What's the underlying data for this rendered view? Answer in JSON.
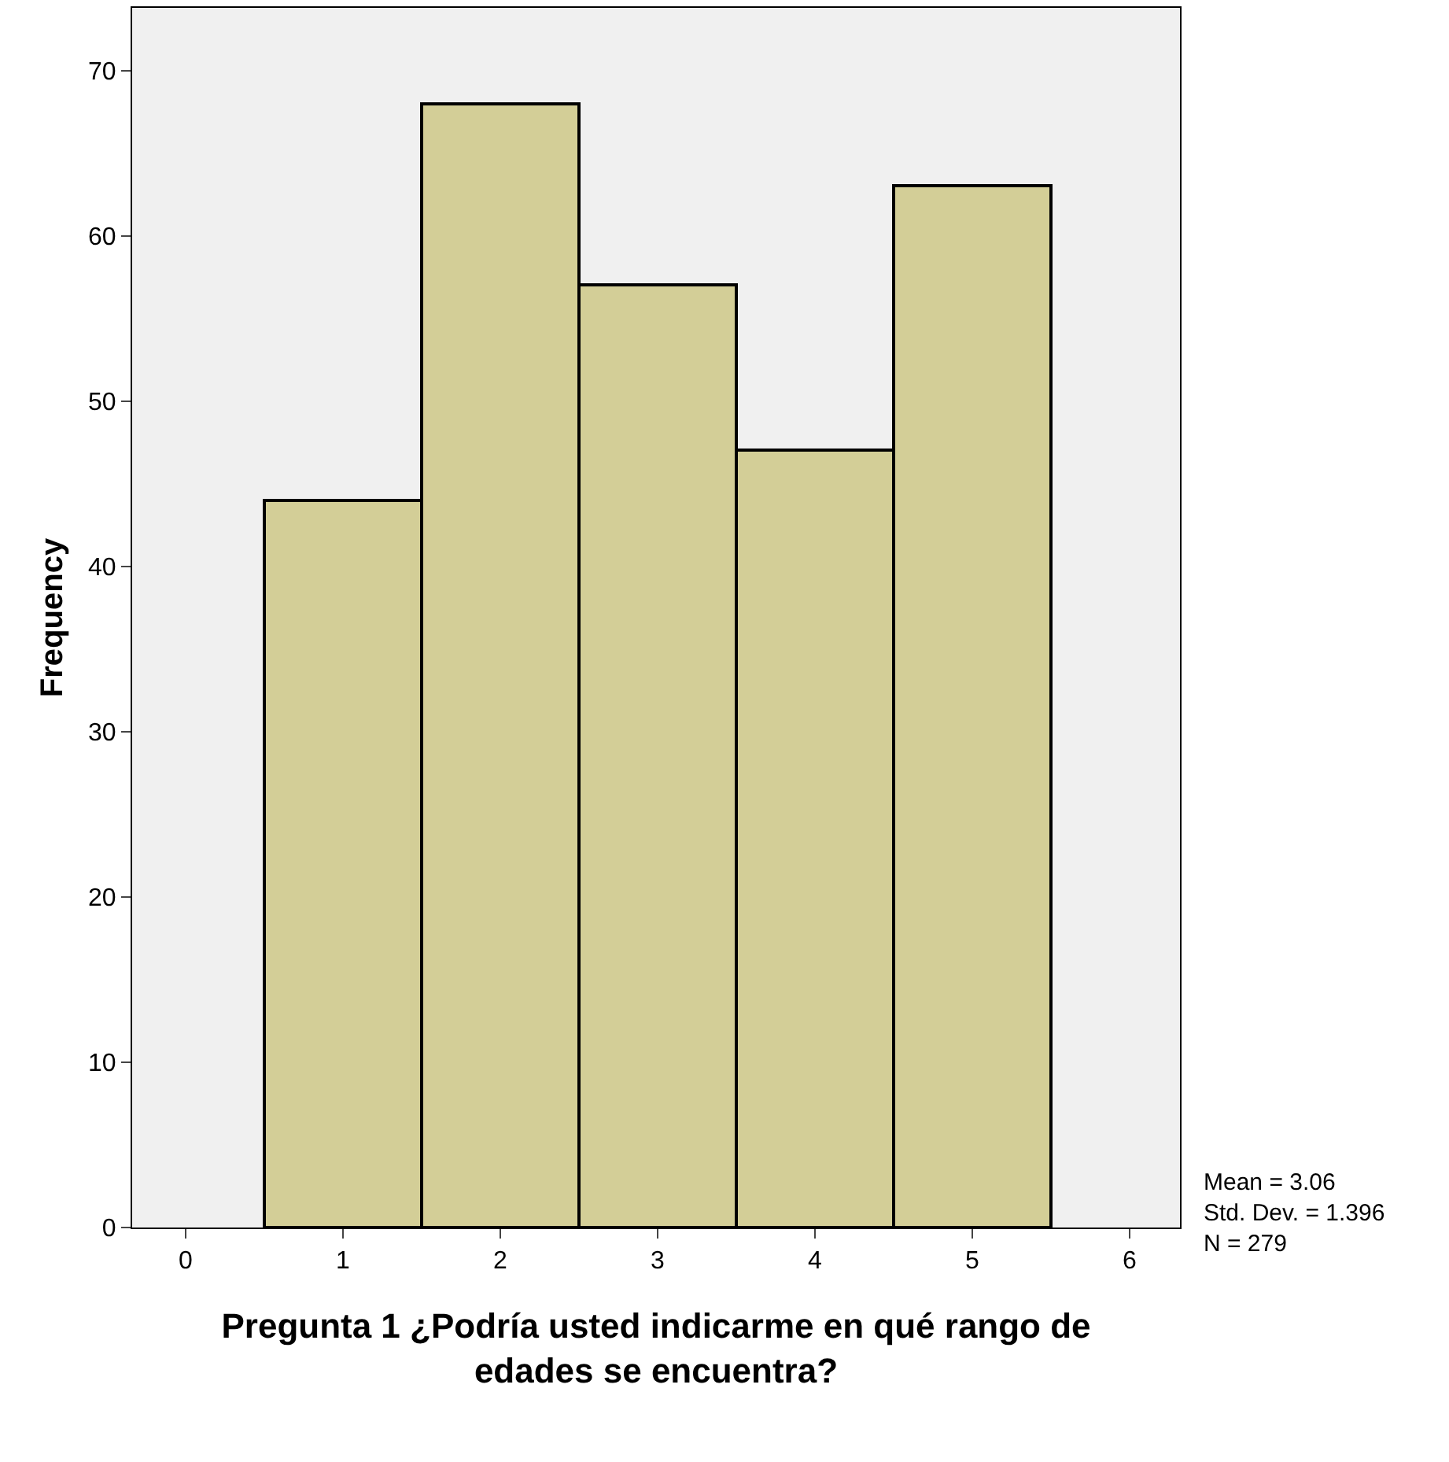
{
  "chart_data": {
    "type": "histogram",
    "xlabel": "Pregunta 1 ¿Podría usted indicarme en qué rango de edades se encuentra?",
    "ylabel": "Frequency",
    "bins": [
      0.5,
      1.5,
      2.5,
      3.5,
      4.5,
      5.5
    ],
    "values": [
      44,
      68,
      57,
      47,
      63
    ],
    "color": "#d3ce97",
    "xlim": [
      -0.34,
      6.32
    ],
    "xticks": [
      0,
      1,
      2,
      3,
      4,
      5,
      6
    ],
    "ylim": [
      0,
      73.8
    ],
    "yticks": [
      0,
      10,
      20,
      30,
      40,
      50,
      60,
      70
    ],
    "grid": false,
    "annotations": [
      "Mean = 3.06",
      "Std. Dev. = 1.396",
      "N = 279"
    ]
  }
}
